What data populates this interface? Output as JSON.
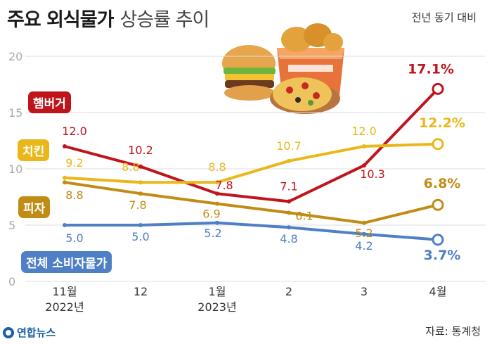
{
  "header": {
    "title_main": "주요 외식물가",
    "title_sub": "상승률 추이",
    "unit_note": "전년 동기 대비"
  },
  "footer": {
    "logo": "연합뉴스",
    "source": "자료: 통계청"
  },
  "colors": {
    "hamburger": "#c0141b",
    "chicken": "#eab71a",
    "pizza": "#c08c14",
    "cpi": "#4f7fc4",
    "grid": "#dddddd"
  },
  "chart_data": {
    "type": "line",
    "title": "주요 외식물가 상승률 추이",
    "ylim": [
      0,
      20
    ],
    "yticks": [
      "0",
      "5",
      "10",
      "15",
      "20"
    ],
    "grid": true,
    "categories": [
      "11월|2022년",
      "12",
      "1월|2023년",
      "2",
      "3",
      "4월"
    ],
    "series": [
      {
        "key": "hamburger",
        "name": "햄버거",
        "values": [
          12.0,
          10.2,
          7.8,
          7.1,
          10.3,
          17.1
        ],
        "labels": [
          "12.0",
          "10.2",
          "7.8",
          "7.1",
          "10.3",
          "17.1%"
        ]
      },
      {
        "key": "chicken",
        "name": "치킨",
        "values": [
          9.2,
          8.8,
          8.8,
          10.7,
          12.0,
          12.2
        ],
        "labels": [
          "9.2",
          "8.8",
          "8.8",
          "10.7",
          "12.0",
          "12.2%"
        ]
      },
      {
        "key": "pizza",
        "name": "피자",
        "values": [
          8.8,
          7.8,
          6.9,
          6.1,
          5.2,
          6.8
        ],
        "labels": [
          "8.8",
          "7.8",
          "6.9",
          "6.1",
          "5.2",
          "6.8%"
        ]
      },
      {
        "key": "cpi",
        "name": "전체 소비자물가",
        "values": [
          5.0,
          5.0,
          5.2,
          4.8,
          4.2,
          3.7
        ],
        "labels": [
          "5.0",
          "5.0",
          "5.2",
          "4.8",
          "4.2",
          "3.7%"
        ]
      }
    ]
  }
}
